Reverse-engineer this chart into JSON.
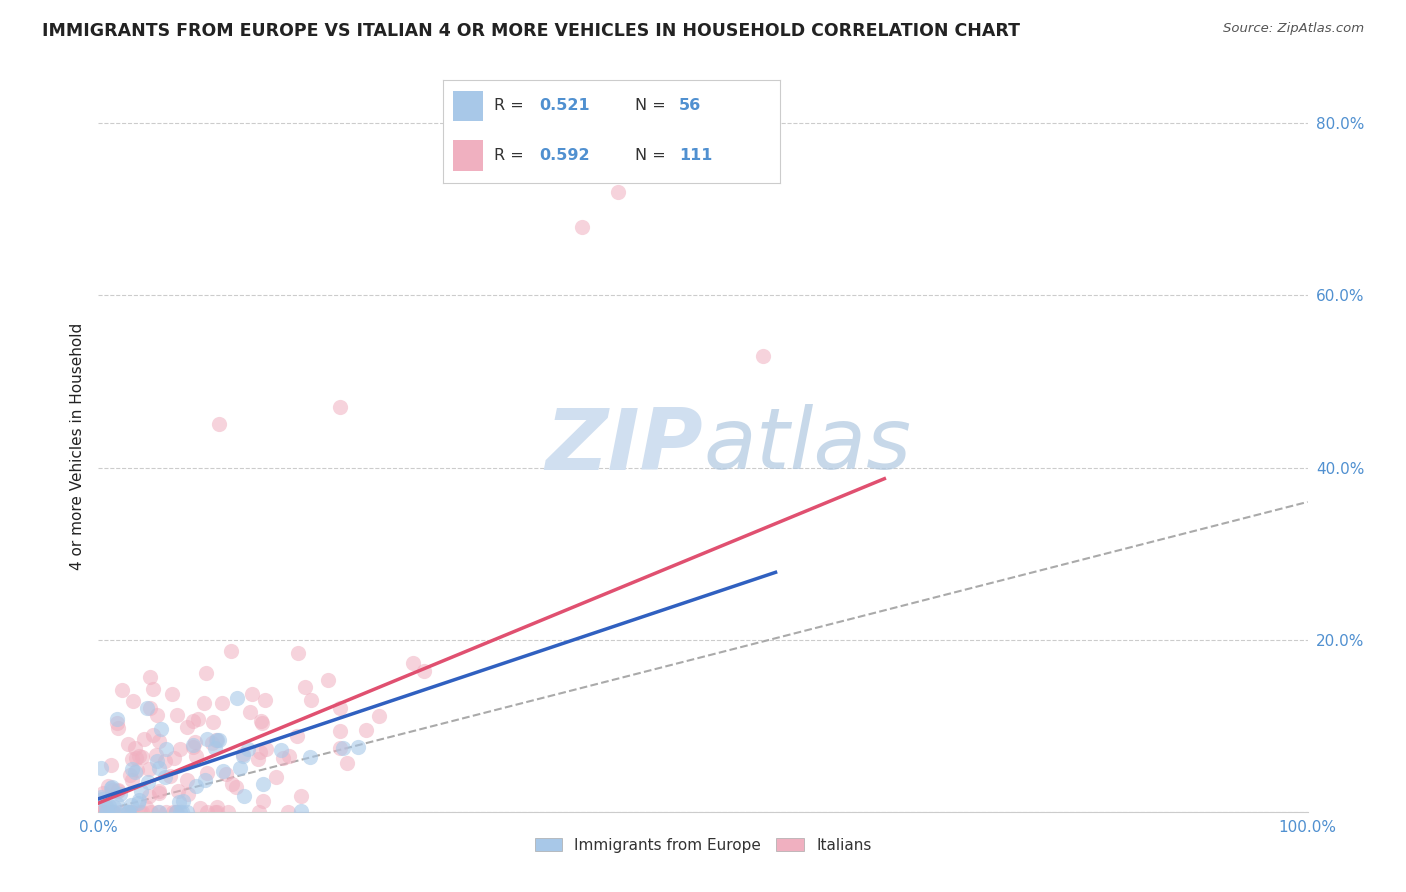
{
  "title": "IMMIGRANTS FROM EUROPE VS ITALIAN 4 OR MORE VEHICLES IN HOUSEHOLD CORRELATION CHART",
  "source": "Source: ZipAtlas.com",
  "ylabel": "4 or more Vehicles in Household",
  "xlim": [
    0,
    1.0
  ],
  "ylim": [
    0,
    0.85
  ],
  "blue_color": "#a8c8e8",
  "pink_color": "#f0b0c0",
  "blue_line_color": "#3060c0",
  "pink_line_color": "#e05070",
  "dashed_line_color": "#aaaaaa",
  "background_color": "#ffffff",
  "grid_color": "#cccccc",
  "watermark_color": "#d0dff0",
  "title_color": "#222222",
  "source_color": "#555555",
  "axis_label_color": "#222222",
  "tick_color": "#5090d0",
  "legend_border_color": "#cccccc"
}
